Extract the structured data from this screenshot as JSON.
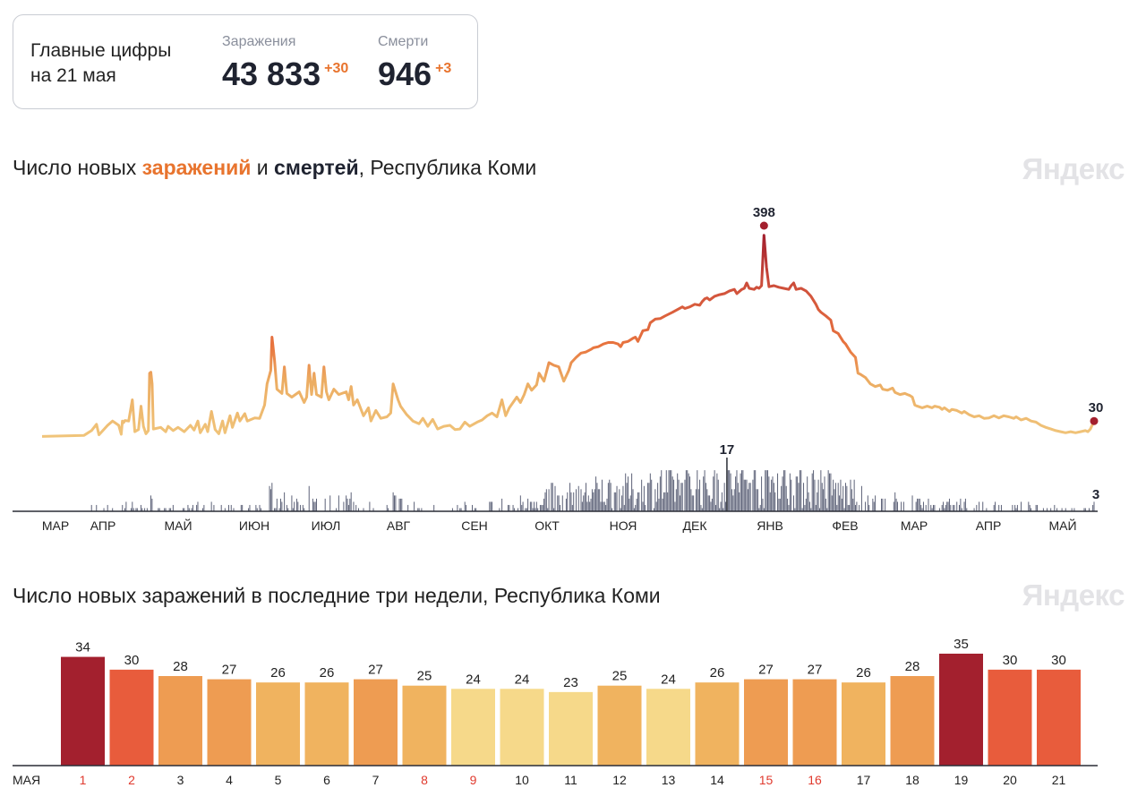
{
  "summary": {
    "title_line1": "Главные цифры",
    "title_line2": "на 21 мая",
    "infections_label": "Заражения",
    "infections_value": "43 833",
    "infections_increment": "+30",
    "deaths_label": "Смерти",
    "deaths_value": "946",
    "deaths_increment": "+3"
  },
  "chart1": {
    "title_prefix": "Число новых ",
    "title_infections": "заражений",
    "title_mid": " и ",
    "title_deaths": "смертей",
    "title_suffix": ", Республика Коми",
    "logo": "Яндекс",
    "peak_label": "398",
    "last_label": "30",
    "deaths_peak_label": "17",
    "deaths_last_label": "3"
  },
  "chart2": {
    "title": "Число новых заражений в последние три недели, Республика Коми",
    "logo": "Яндекс",
    "month_label": "МАЯ"
  },
  "colors": {
    "low": "#f6d98a",
    "mid": "#f0b35f",
    "high": "#ee9c52",
    "higher": "#e85c3c",
    "max": "#a3202e",
    "deaths_bars": "#5d6278",
    "weekend": "#e03a2e"
  },
  "chart_data": [
    {
      "type": "line",
      "title": "Число новых заражений и смертей, Республика Коми",
      "series": [
        {
          "name": "Заражения",
          "x_range": [
            "2020-03-01",
            "2021-05-21"
          ],
          "anchors": [
            [
              0,
              1
            ],
            [
              34,
              3
            ],
            [
              40,
              12
            ],
            [
              44,
              24
            ],
            [
              46,
              4
            ],
            [
              53,
              22
            ],
            [
              57,
              30
            ],
            [
              62,
              22
            ],
            [
              64,
              5
            ],
            [
              65,
              30
            ],
            [
              66,
              27
            ],
            [
              67,
              31
            ],
            [
              70,
              30
            ],
            [
              73,
              70
            ],
            [
              75,
              10
            ],
            [
              78,
              14
            ],
            [
              80,
              58
            ],
            [
              82,
              20
            ],
            [
              84,
              6
            ],
            [
              86,
              12
            ],
            [
              87,
              120
            ],
            [
              88,
              122
            ],
            [
              89,
              100
            ],
            [
              90,
              15
            ],
            [
              96,
              18
            ],
            [
              100,
              10
            ],
            [
              102,
              20
            ],
            [
              106,
              12
            ],
            [
              110,
              18
            ],
            [
              115,
              10
            ],
            [
              120,
              22
            ],
            [
              123,
              13
            ],
            [
              126,
              30
            ],
            [
              128,
              8
            ],
            [
              132,
              24
            ],
            [
              134,
              10
            ],
            [
              137,
              48
            ],
            [
              140,
              14
            ],
            [
              143,
              6
            ],
            [
              146,
              30
            ],
            [
              148,
              8
            ],
            [
              152,
              40
            ],
            [
              154,
              18
            ],
            [
              158,
              45
            ],
            [
              160,
              30
            ],
            [
              164,
              44
            ],
            [
              166,
              30
            ],
            [
              172,
              36
            ],
            [
              176,
              35
            ],
            [
              180,
              60
            ],
            [
              182,
              100
            ],
            [
              185,
              125
            ],
            [
              186,
              188
            ],
            [
              188,
              145
            ],
            [
              190,
              90
            ],
            [
              194,
              82
            ],
            [
              196,
              132
            ],
            [
              198,
              82
            ],
            [
              202,
              75
            ],
            [
              208,
              85
            ],
            [
              212,
              65
            ],
            [
              214,
              75
            ],
            [
              216,
              135
            ],
            [
              218,
              80
            ],
            [
              220,
              120
            ],
            [
              222,
              80
            ],
            [
              226,
              75
            ],
            [
              228,
              132
            ],
            [
              230,
              85
            ],
            [
              232,
              70
            ],
            [
              236,
              90
            ],
            [
              240,
              80
            ],
            [
              246,
              85
            ],
            [
              248,
              70
            ],
            [
              250,
              95
            ],
            [
              252,
              60
            ],
            [
              255,
              70
            ],
            [
              260,
              40
            ],
            [
              264,
              55
            ],
            [
              266,
              30
            ],
            [
              270,
              50
            ],
            [
              274,
              35
            ],
            [
              279,
              38
            ],
            [
              282,
              45
            ],
            [
              284,
              100
            ],
            [
              288,
              70
            ],
            [
              290,
              58
            ],
            [
              295,
              42
            ],
            [
              300,
              30
            ],
            [
              305,
              25
            ],
            [
              308,
              35
            ],
            [
              312,
              20
            ],
            [
              316,
              33
            ],
            [
              320,
              15
            ],
            [
              325,
              20
            ],
            [
              330,
              22
            ],
            [
              334,
              14
            ],
            [
              338,
              15
            ],
            [
              342,
              28
            ],
            [
              346,
              20
            ],
            [
              352,
              28
            ],
            [
              356,
              32
            ],
            [
              360,
              40
            ],
            [
              364,
              45
            ],
            [
              368,
              38
            ],
            [
              372,
              70
            ],
            [
              375,
              40
            ],
            [
              378,
              55
            ],
            [
              384,
              75
            ],
            [
              387,
              65
            ],
            [
              390,
              80
            ],
            [
              393,
              100
            ],
            [
              396,
              88
            ],
            [
              400,
              98
            ],
            [
              402,
              120
            ],
            [
              406,
              105
            ],
            [
              410,
              140
            ],
            [
              414,
              135
            ],
            [
              418,
              132
            ],
            [
              422,
              105
            ],
            [
              426,
              125
            ],
            [
              428,
              140
            ],
            [
              432,
              150
            ],
            [
              436,
              158
            ],
            [
              440,
              160
            ],
            [
              444,
              165
            ],
            [
              446,
              168
            ],
            [
              450,
              170
            ],
            [
              454,
              175
            ],
            [
              458,
              178
            ],
            [
              462,
              178
            ],
            [
              466,
              175
            ],
            [
              468,
              170
            ],
            [
              470,
              178
            ],
            [
              474,
              180
            ],
            [
              478,
              186
            ],
            [
              480,
              188
            ],
            [
              482,
              180
            ],
            [
              486,
              200
            ],
            [
              490,
              202
            ],
            [
              492,
              215
            ],
            [
              496,
              222
            ],
            [
              500,
              223
            ],
            [
              504,
              228
            ],
            [
              510,
              235
            ],
            [
              514,
              240
            ],
            [
              518,
              245
            ],
            [
              520,
              242
            ],
            [
              524,
              245
            ],
            [
              528,
              250
            ],
            [
              532,
              248
            ],
            [
              534,
              255
            ],
            [
              536,
              260
            ],
            [
              538,
              262
            ],
            [
              540,
              258
            ],
            [
              544,
              265
            ],
            [
              548,
              268
            ],
            [
              552,
              270
            ],
            [
              556,
              275
            ],
            [
              560,
              278
            ],
            [
              562,
              270
            ],
            [
              566,
              278
            ],
            [
              568,
              280
            ],
            [
              570,
              290
            ],
            [
              572,
              280
            ],
            [
              576,
              278
            ],
            [
              578,
              282
            ],
            [
              580,
              280
            ],
            [
              582,
              285
            ],
            [
              584,
              380
            ],
            [
              586,
              320
            ],
            [
              588,
              283
            ],
            [
              592,
              285
            ],
            [
              596,
              282
            ],
            [
              600,
              280
            ],
            [
              604,
              278
            ],
            [
              606,
              285
            ],
            [
              608,
              290
            ],
            [
              610,
              278
            ],
            [
              614,
              280
            ],
            [
              618,
              275
            ],
            [
              622,
              265
            ],
            [
              626,
              250
            ],
            [
              628,
              240
            ],
            [
              630,
              235
            ],
            [
              634,
              228
            ],
            [
              638,
              220
            ],
            [
              640,
              200
            ],
            [
              644,
              195
            ],
            [
              648,
              180
            ],
            [
              650,
              175
            ],
            [
              654,
              160
            ],
            [
              658,
              150
            ],
            [
              660,
              120
            ],
            [
              662,
              118
            ],
            [
              666,
              112
            ],
            [
              670,
              100
            ],
            [
              674,
              95
            ],
            [
              678,
              98
            ],
            [
              680,
              90
            ],
            [
              684,
              88
            ],
            [
              688,
              92
            ],
            [
              690,
              84
            ],
            [
              694,
              80
            ],
            [
              698,
              82
            ],
            [
              700,
              80
            ],
            [
              702,
              78
            ],
            [
              704,
              75
            ],
            [
              706,
              60
            ],
            [
              708,
              58
            ],
            [
              712,
              55
            ],
            [
              716,
              58
            ],
            [
              720,
              55
            ],
            [
              722,
              58
            ],
            [
              726,
              56
            ],
            [
              728,
              52
            ],
            [
              730,
              55
            ],
            [
              734,
              48
            ],
            [
              736,
              52
            ],
            [
              740,
              50
            ],
            [
              744,
              45
            ],
            [
              746,
              48
            ],
            [
              750,
              42
            ],
            [
              754,
              38
            ],
            [
              758,
              40
            ],
            [
              762,
              35
            ],
            [
              766,
              36
            ],
            [
              770,
              40
            ],
            [
              774,
              36
            ],
            [
              778,
              40
            ],
            [
              782,
              38
            ],
            [
              786,
              35
            ],
            [
              788,
              38
            ],
            [
              792,
              32
            ],
            [
              796,
              35
            ],
            [
              800,
              30
            ],
            [
              804,
              28
            ],
            [
              808,
              22
            ],
            [
              812,
              18
            ],
            [
              816,
              15
            ],
            [
              820,
              12
            ],
            [
              824,
              10
            ],
            [
              828,
              8
            ],
            [
              832,
              10
            ],
            [
              836,
              8
            ],
            [
              840,
              10
            ],
            [
              844,
              12
            ],
            [
              846,
              10
            ],
            [
              848,
              15
            ],
            [
              851,
              30
            ]
          ],
          "peak": {
            "index": 584,
            "value": 398
          },
          "last": {
            "index": 851,
            "value": 30
          }
        },
        {
          "name": "Смерти",
          "peak": {
            "label": "17"
          },
          "last": {
            "label": "3"
          },
          "y_max": 17
        }
      ],
      "months": [
        "МАР",
        "АПР",
        "МАЙ",
        "ИЮН",
        "ИЮЛ",
        "АВГ",
        "СЕН",
        "ОКТ",
        "НОЯ",
        "ДЕК",
        "ЯНВ",
        "ФЕВ",
        "МАР",
        "АПР",
        "МАЙ"
      ],
      "y_max": 398
    },
    {
      "type": "bar",
      "title": "Число новых заражений в последние три недели, Республика Коми",
      "x_prefix": "МАЯ",
      "categories": [
        "1",
        "2",
        "3",
        "4",
        "5",
        "6",
        "7",
        "8",
        "9",
        "10",
        "11",
        "12",
        "13",
        "14",
        "15",
        "16",
        "17",
        "18",
        "19",
        "20",
        "21"
      ],
      "values": [
        34,
        30,
        28,
        27,
        26,
        26,
        27,
        25,
        24,
        24,
        23,
        25,
        24,
        26,
        27,
        27,
        26,
        28,
        35,
        30,
        30
      ],
      "weekend": [
        true,
        true,
        false,
        false,
        false,
        false,
        false,
        true,
        true,
        false,
        false,
        false,
        false,
        false,
        true,
        true,
        false,
        false,
        false,
        false,
        false
      ],
      "ylim": [
        0,
        35
      ]
    }
  ]
}
